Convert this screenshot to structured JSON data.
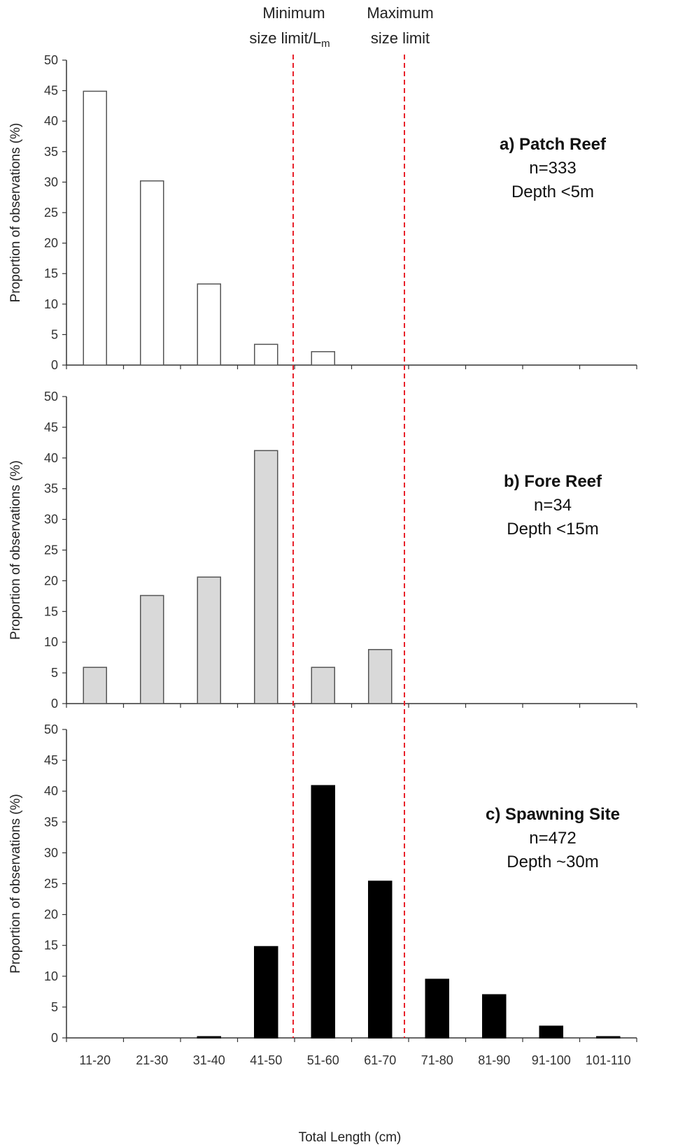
{
  "chart_data": {
    "type": "bar",
    "categories": [
      "11-20",
      "21-30",
      "31-40",
      "41-50",
      "51-60",
      "61-70",
      "71-80",
      "81-90",
      "91-100",
      "101-110"
    ],
    "xlabel": "Total Length (cm)",
    "ylabel": "Proportion of observations (%)",
    "ylim": [
      0,
      50
    ],
    "yticks": [
      0,
      5,
      10,
      15,
      20,
      25,
      30,
      35,
      40,
      45,
      50
    ],
    "reference_lines": [
      {
        "label_line1": "Minimum",
        "label_line2": "size limit/L",
        "label_sub": "m",
        "position": "between 41-50 and 51-60"
      },
      {
        "label_line1": "Maximum",
        "label_line2": "size limit",
        "label_sub": "",
        "position": "between 61-70 and 71-80"
      }
    ],
    "panels": [
      {
        "title": "a) Patch Reef",
        "n": "n=333",
        "depth": "Depth <5m",
        "fill": "#ffffff",
        "stroke": "#555555",
        "values": [
          44.9,
          30.2,
          13.3,
          3.4,
          2.2,
          0,
          0,
          0,
          0,
          0
        ]
      },
      {
        "title": "b) Fore Reef",
        "n": "n=34",
        "depth": "Depth <15m",
        "fill": "#d9d9d9",
        "stroke": "#555555",
        "values": [
          5.9,
          17.6,
          20.6,
          41.2,
          5.9,
          8.8,
          0,
          0,
          0,
          0
        ]
      },
      {
        "title": "c) Spawning Site",
        "n": "n=472",
        "depth": "Depth ~30m",
        "fill": "#000000",
        "stroke": "#000000",
        "values": [
          0,
          0,
          0.2,
          14.8,
          40.9,
          25.4,
          9.5,
          7.0,
          1.9,
          0.2
        ]
      }
    ],
    "colors": {
      "reference_line": "#e8212b",
      "axis": "#333333"
    }
  }
}
